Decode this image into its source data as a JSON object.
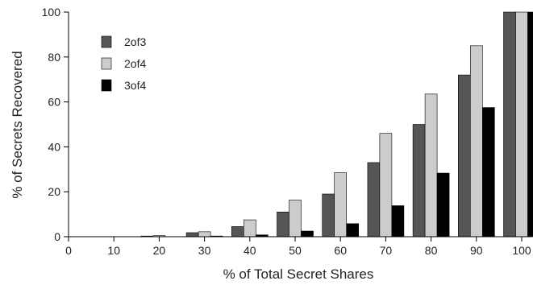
{
  "chart_data": {
    "type": "bar",
    "xlabel": "% of Total Secret Shares",
    "ylabel": "% of Secrets Recovered",
    "categories": [
      "0",
      "10",
      "20",
      "30",
      "40",
      "50",
      "60",
      "70",
      "80",
      "90",
      "100"
    ],
    "x_ticks": [
      "0",
      "10",
      "20",
      "30",
      "40",
      "50",
      "60",
      "70",
      "80",
      "90",
      "100"
    ],
    "y_ticks": [
      "0",
      "20",
      "40",
      "60",
      "80",
      "100"
    ],
    "ylim": [
      0,
      100
    ],
    "grid": false,
    "legend_position": "top-left",
    "series": [
      {
        "name": "2of3",
        "color": "#555555",
        "values": [
          0,
          0,
          0.3,
          1.8,
          4.5,
          11,
          19,
          33,
          50,
          72,
          100
        ]
      },
      {
        "name": "2of4",
        "color": "#cccccc",
        "values": [
          0,
          0,
          0.5,
          2.2,
          7.5,
          16.3,
          28.5,
          46,
          63.5,
          85,
          100
        ]
      },
      {
        "name": "3of4",
        "color": "#000000",
        "values": [
          0,
          0,
          0,
          0.3,
          0.8,
          2.5,
          5.8,
          13.8,
          28.3,
          57.5,
          100
        ]
      }
    ]
  }
}
